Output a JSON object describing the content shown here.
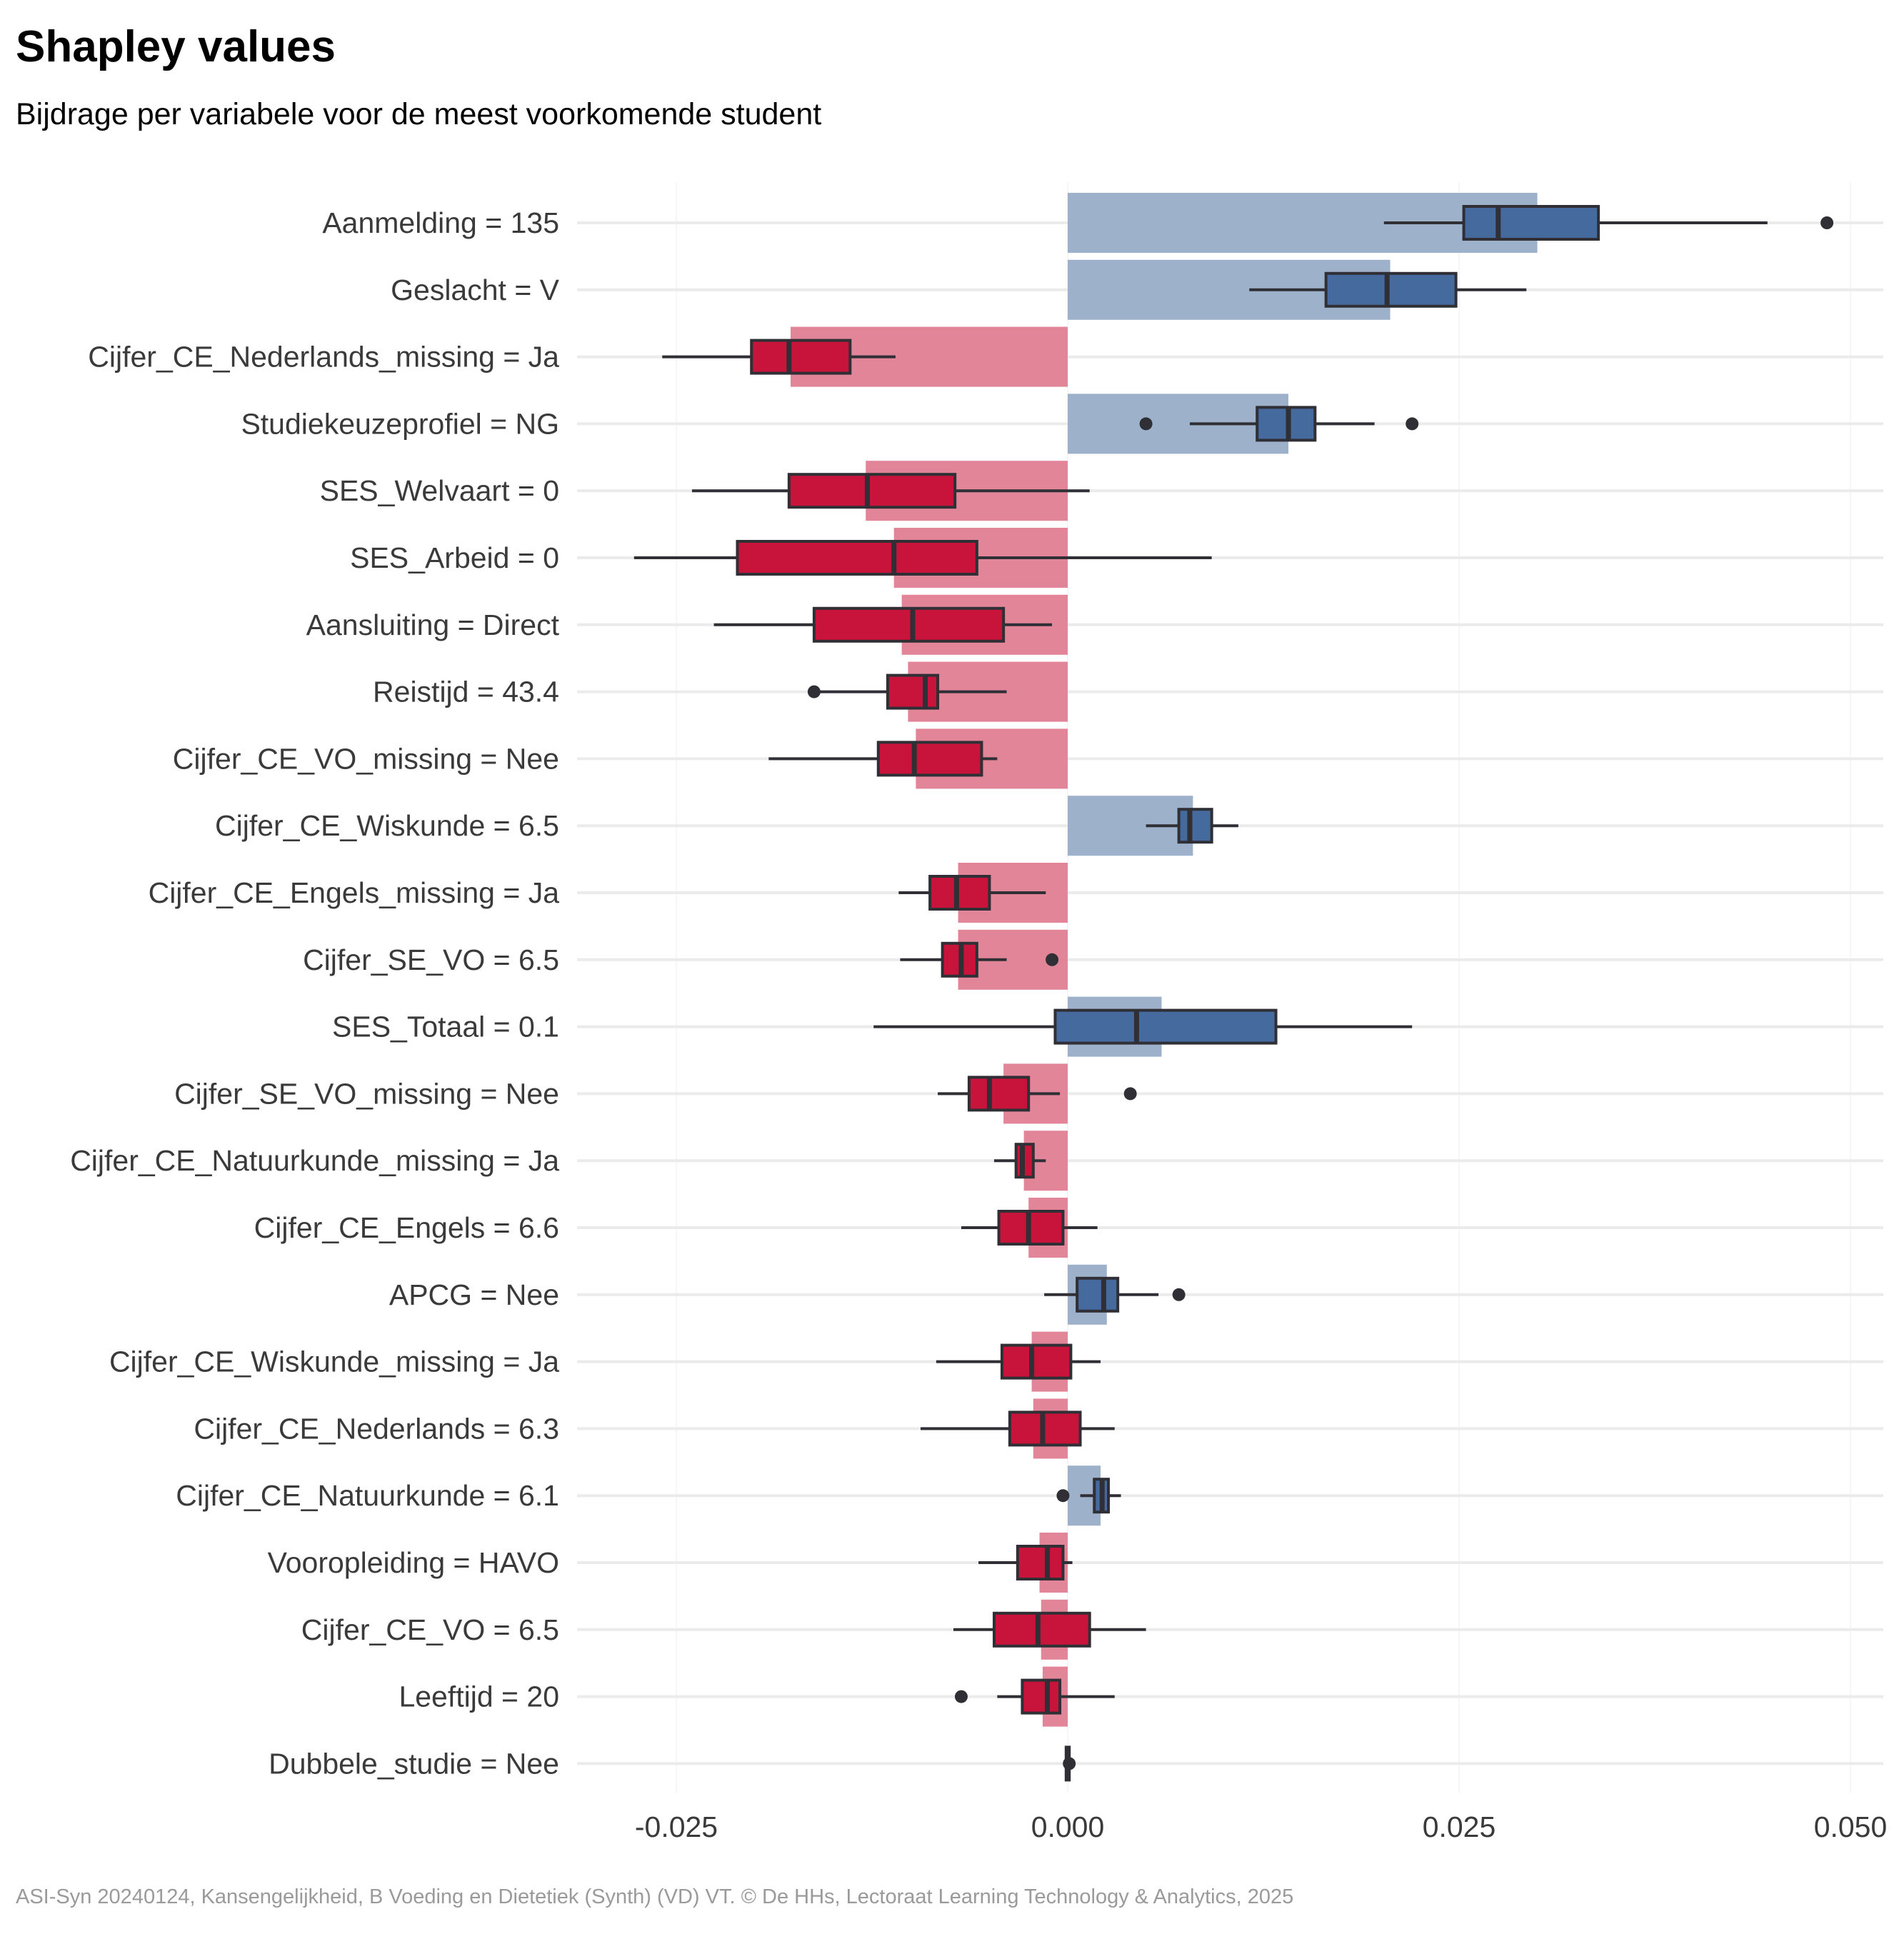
{
  "title": "Shapley values",
  "subtitle": "Bijdrage per variabele voor de meest voorkomende student",
  "caption": "ASI-Syn 20240124, Kansengelijkheid, B Voeding en Dietetiek (Synth) (VD) VT. © De HHs, Lectoraat Learning Technology & Analytics, 2025",
  "colors": {
    "positive_box": "#446a9e",
    "positive_bar": "#9eb1cb",
    "negative_box": "#c8143b",
    "negative_bar": "#e28598",
    "outline": "#2f2f35",
    "grid": "#ebebeb"
  },
  "chart_data": {
    "type": "bar",
    "overlay": "boxplot",
    "xlim": [
      -0.03,
      0.05
    ],
    "xticks": [
      -0.025,
      0.0,
      0.025,
      0.05
    ],
    "xtick_labels": [
      "-0.025",
      "0.000",
      "0.025",
      "0.050"
    ],
    "grid": true,
    "categories": [
      "Aanmelding = 135",
      "Geslacht = V",
      "Cijfer_CE_Nederlands_missing = Ja",
      "Studiekeuzeprofiel = NG",
      "SES_Welvaart = 0",
      "SES_Arbeid = 0",
      "Aansluiting = Direct",
      "Reistijd = 43.4",
      "Cijfer_CE_VO_missing = Nee",
      "Cijfer_CE_Wiskunde = 6.5",
      "Cijfer_CE_Engels_missing = Ja",
      "Cijfer_SE_VO = 6.5",
      "SES_Totaal = 0.1",
      "Cijfer_SE_VO_missing = Nee",
      "Cijfer_CE_Natuurkunde_missing = Ja",
      "Cijfer_CE_Engels = 6.6",
      "APCG = Nee",
      "Cijfer_CE_Wiskunde_missing = Ja",
      "Cijfer_CE_Nederlands = 6.3",
      "Cijfer_CE_Natuurkunde = 6.1",
      "Vooropleiding = HAVO",
      "Cijfer_CE_VO = 6.5",
      "Leeftijd = 20",
      "Dubbele_studie = Nee"
    ],
    "values": [
      0.03,
      0.0206,
      -0.0177,
      0.0141,
      -0.0129,
      -0.0111,
      -0.0106,
      -0.0102,
      -0.0097,
      0.008,
      -0.007,
      -0.007,
      0.006,
      -0.0041,
      -0.0028,
      -0.0025,
      0.0025,
      -0.0023,
      -0.0022,
      0.0021,
      -0.0018,
      -0.0017,
      -0.0016,
      0.0
    ],
    "boxes": [
      {
        "whisker_low": 0.0202,
        "q1": 0.0253,
        "median": 0.0275,
        "q3": 0.0339,
        "whisker_high": 0.0447,
        "outliers": [
          0.0485
        ]
      },
      {
        "whisker_low": 0.0116,
        "q1": 0.0165,
        "median": 0.0204,
        "q3": 0.0248,
        "whisker_high": 0.0293,
        "outliers": []
      },
      {
        "whisker_low": -0.0259,
        "q1": -0.0202,
        "median": -0.0178,
        "q3": -0.0139,
        "whisker_high": -0.011,
        "outliers": []
      },
      {
        "whisker_low": 0.0078,
        "q1": 0.0121,
        "median": 0.0141,
        "q3": 0.0158,
        "whisker_high": 0.0196,
        "outliers": [
          0.005,
          0.022
        ]
      },
      {
        "whisker_low": -0.024,
        "q1": -0.0178,
        "median": -0.0128,
        "q3": -0.0072,
        "whisker_high": 0.0014,
        "outliers": []
      },
      {
        "whisker_low": -0.0277,
        "q1": -0.0211,
        "median": -0.0111,
        "q3": -0.0058,
        "whisker_high": 0.0092,
        "outliers": []
      },
      {
        "whisker_low": -0.0226,
        "q1": -0.0162,
        "median": -0.0099,
        "q3": -0.0041,
        "whisker_high": -0.001,
        "outliers": []
      },
      {
        "whisker_low": -0.0162,
        "q1": -0.0115,
        "median": -0.0091,
        "q3": -0.0083,
        "whisker_high": -0.0039,
        "outliers": [
          -0.0162
        ]
      },
      {
        "whisker_low": -0.0191,
        "q1": -0.0121,
        "median": -0.0098,
        "q3": -0.0055,
        "whisker_high": -0.0045,
        "outliers": []
      },
      {
        "whisker_low": 0.005,
        "q1": 0.0071,
        "median": 0.0078,
        "q3": 0.0092,
        "whisker_high": 0.0109,
        "outliers": []
      },
      {
        "whisker_low": -0.0108,
        "q1": -0.0088,
        "median": -0.0071,
        "q3": -0.005,
        "whisker_high": -0.0014,
        "outliers": []
      },
      {
        "whisker_low": -0.0107,
        "q1": -0.008,
        "median": -0.0068,
        "q3": -0.0058,
        "whisker_high": -0.0039,
        "outliers": [
          -0.001
        ]
      },
      {
        "whisker_low": -0.0124,
        "q1": -0.0008,
        "median": 0.0044,
        "q3": 0.0133,
        "whisker_high": 0.022,
        "outliers": []
      },
      {
        "whisker_low": -0.0083,
        "q1": -0.0063,
        "median": -0.005,
        "q3": -0.0025,
        "whisker_high": -0.0005,
        "outliers": [
          0.004
        ]
      },
      {
        "whisker_low": -0.0047,
        "q1": -0.0033,
        "median": -0.0029,
        "q3": -0.0022,
        "whisker_high": -0.0014,
        "outliers": []
      },
      {
        "whisker_low": -0.0068,
        "q1": -0.0044,
        "median": -0.0025,
        "q3": -0.0003,
        "whisker_high": 0.0019,
        "outliers": []
      },
      {
        "whisker_low": -0.0015,
        "q1": 0.0006,
        "median": 0.0023,
        "q3": 0.0032,
        "whisker_high": 0.0058,
        "outliers": [
          0.0071
        ]
      },
      {
        "whisker_low": -0.0084,
        "q1": -0.0042,
        "median": -0.0023,
        "q3": 0.0002,
        "whisker_high": 0.0021,
        "outliers": []
      },
      {
        "whisker_low": -0.0094,
        "q1": -0.0037,
        "median": -0.0016,
        "q3": 0.0008,
        "whisker_high": 0.003,
        "outliers": []
      },
      {
        "whisker_low": 0.0008,
        "q1": 0.0017,
        "median": 0.0022,
        "q3": 0.0026,
        "whisker_high": 0.0034,
        "outliers": [
          -0.0003
        ]
      },
      {
        "whisker_low": -0.0057,
        "q1": -0.0032,
        "median": -0.0013,
        "q3": -0.0003,
        "whisker_high": 0.0003,
        "outliers": []
      },
      {
        "whisker_low": -0.0073,
        "q1": -0.0047,
        "median": -0.0019,
        "q3": 0.0014,
        "whisker_high": 0.005,
        "outliers": []
      },
      {
        "whisker_low": -0.0045,
        "q1": -0.0029,
        "median": -0.0013,
        "q3": -0.0005,
        "whisker_high": 0.003,
        "outliers": [
          -0.0068
        ]
      },
      {
        "whisker_low": -0.0001,
        "q1": -0.0001,
        "median": 0.0,
        "q3": 0.0001,
        "whisker_high": 0.0002,
        "outliers": [
          0.0001
        ]
      }
    ]
  }
}
